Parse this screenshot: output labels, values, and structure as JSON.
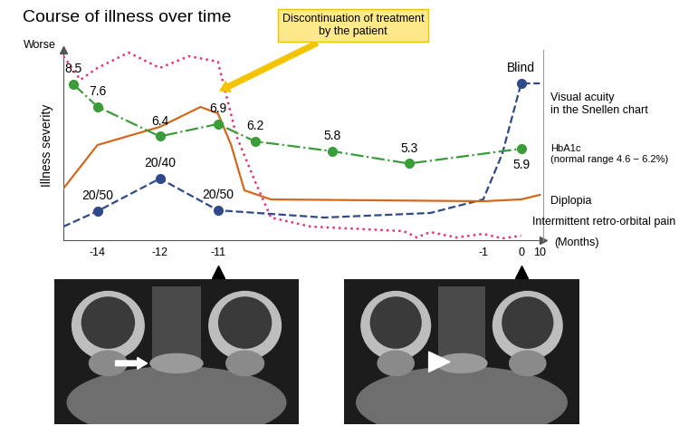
{
  "chart_data": {
    "type": "line",
    "title": "Course of illness over time",
    "ylabel": "Illness severity",
    "y_end_label": "Worse",
    "xlabel": "(Months)",
    "xlim": [
      -15,
      10.5
    ],
    "xticks": [
      -14,
      -12,
      -11,
      -1,
      0,
      10
    ],
    "ylim": [
      0,
      10.5
    ],
    "y2lim": [
      2.2,
      9.9
    ],
    "tick_labels": "x",
    "annotation": {
      "text": "Discontinuation of treatment\nby the patient",
      "x": -11
    },
    "mri_timepoints": [
      -11,
      0
    ],
    "series": [
      {
        "name": "Visual acuity\nin the Snellen chart",
        "color": "#2e4a8a",
        "line_style": "dashed",
        "marker": "o",
        "x": [
          -15,
          -14,
          -12,
          -11,
          -7,
          -3,
          -1,
          -0.5,
          0,
          10
        ],
        "values": [
          0.75,
          1.6,
          3.4,
          1.65,
          1.25,
          1.5,
          2.25,
          4.75,
          8.65,
          8.65
        ],
        "point_labels": [
          null,
          "20/50",
          "20/40",
          "20/50",
          null,
          null,
          null,
          null,
          "Blind",
          null
        ]
      },
      {
        "name": "HbA1c\n(normal range 4.6 − 6.2%)",
        "color": "#3a9d3a",
        "line_style": "dashdot",
        "marker": "o",
        "axis": "y2",
        "data_labels": true,
        "x": [
          -14.7,
          -14,
          -12,
          -11,
          -9.6,
          -6.7,
          -3.8,
          0
        ],
        "values": [
          8.5,
          7.6,
          6.4,
          6.9,
          6.2,
          5.8,
          5.3,
          5.9
        ]
      },
      {
        "name": "Diplopia",
        "color": "#d2691e",
        "line_style": "solid",
        "x": [
          -15,
          -14,
          -12,
          -11.3,
          -11,
          -10.5,
          -10,
          -9,
          -1,
          0,
          10
        ],
        "values": [
          2.85,
          5.25,
          6.25,
          7.35,
          7.0,
          5.25,
          2.75,
          2.25,
          2.15,
          2.25,
          2.5
        ]
      },
      {
        "name": "Intermittent retro-orbital pain",
        "color": "#e8336d",
        "line_style": "dotted",
        "x": [
          -15,
          -14.5,
          -14,
          -13,
          -12,
          -11.5,
          -11,
          -10.3,
          -9.6,
          -9,
          -7.5,
          -4,
          -3.5,
          -3,
          -2,
          -1,
          -0.5,
          0
        ],
        "values": [
          10.15,
          8.85,
          9.5,
          10.35,
          9.5,
          10.15,
          9.85,
          5.75,
          3.25,
          1.25,
          0.75,
          0.5,
          0.15,
          0.45,
          0.15,
          0.35,
          0.1,
          0.25
        ]
      }
    ]
  }
}
